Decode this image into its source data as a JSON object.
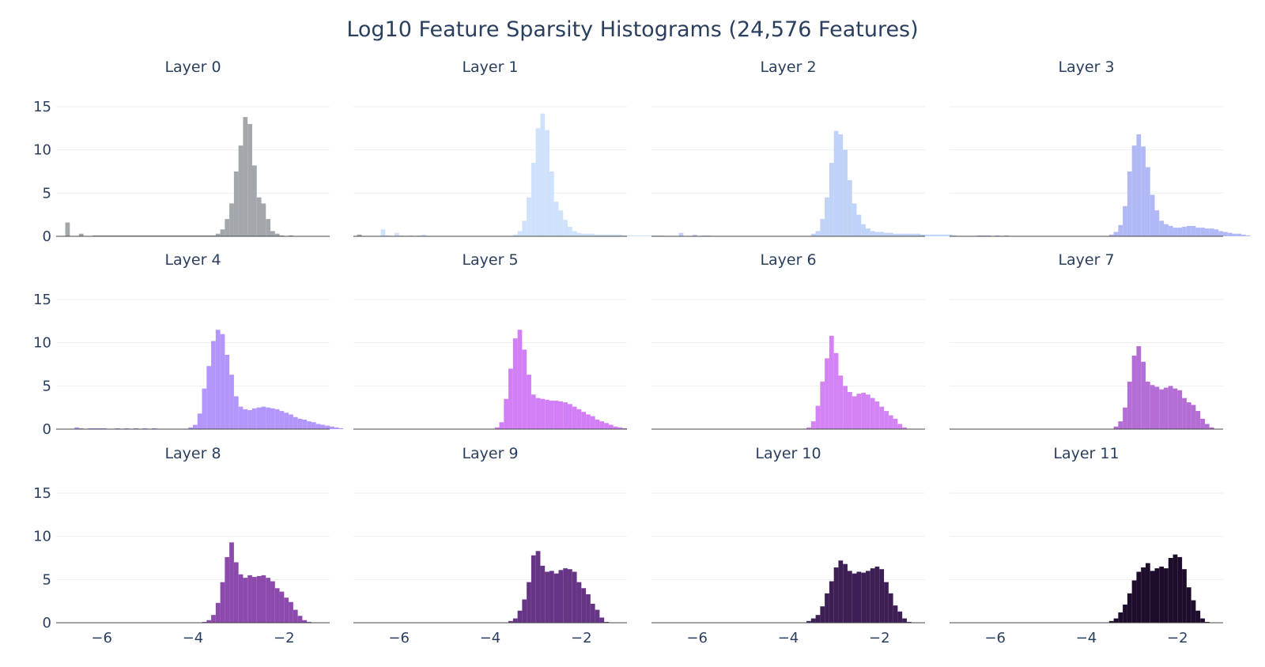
{
  "figure": {
    "title": "Log10 Feature Sparsity Histograms (24,576 Features)"
  },
  "chart_data": {
    "type": "bar",
    "kind": "histogram-grid",
    "title": "Log10 Feature Sparsity Histograms (24,576 Features)",
    "grid": true,
    "layout": {
      "rows": 3,
      "cols": 4
    },
    "xlim": [
      -7,
      -1
    ],
    "ylim": [
      0,
      15
    ],
    "x_ticks": [
      -6,
      -4,
      -2
    ],
    "y_ticks": [
      0,
      5,
      10,
      15
    ],
    "bin_start": -6.8,
    "bin_width": 0.1,
    "panels": [
      {
        "title": "Layer 0",
        "color": "#a2a7ab",
        "values": [
          1.6,
          0,
          0,
          0.3,
          0,
          0,
          0.1,
          0.1,
          0.1,
          0.1,
          0.1,
          0.1,
          0.1,
          0.1,
          0.1,
          0.1,
          0.1,
          0.1,
          0.1,
          0.1,
          0.1,
          0.1,
          0.1,
          0.1,
          0.1,
          0.1,
          0.1,
          0.1,
          0.1,
          0.1,
          0.1,
          0.1,
          0.1,
          0.3,
          0.8,
          2.0,
          3.8,
          7.5,
          10.5,
          13.8,
          13.0,
          8.2,
          4.5,
          3.8,
          2.0,
          0.6,
          0.3,
          0.1,
          0,
          0.1,
          0,
          0,
          0,
          0,
          0,
          0,
          0,
          0,
          0,
          0,
          0,
          0,
          0,
          0,
          0.2,
          0
        ]
      },
      {
        "title": "Layer 1",
        "color": "#cfe2fb",
        "values": [
          0,
          0,
          0,
          0,
          0.8,
          0.1,
          0,
          0.4,
          0.1,
          0,
          0.1,
          0,
          0.1,
          0.2,
          0,
          0,
          0,
          0,
          0,
          0,
          0,
          0,
          0,
          0,
          0,
          0,
          0,
          0,
          0,
          0,
          0,
          0,
          0,
          0.2,
          0.6,
          1.8,
          4.5,
          8.5,
          12.5,
          14.2,
          12.3,
          7.5,
          4.0,
          3.0,
          1.9,
          1.1,
          0.6,
          0.4,
          0.3,
          0.3,
          0.3,
          0.2,
          0.2,
          0.2,
          0.2,
          0.2,
          0.2,
          0.1,
          0.1,
          0.1,
          0.1,
          0.1,
          0.1,
          0.1,
          0.1,
          0.1
        ]
      },
      {
        "title": "Layer 2",
        "color": "#bfd3f8",
        "values": [
          0,
          0,
          0,
          0,
          0.4,
          0,
          0,
          0.2,
          0,
          0.1,
          0.1,
          0,
          0,
          0,
          0,
          0,
          0,
          0,
          0,
          0,
          0,
          0,
          0,
          0,
          0,
          0,
          0,
          0,
          0,
          0,
          0,
          0,
          0,
          0.3,
          0.6,
          2.0,
          4.5,
          8.5,
          12.2,
          11.8,
          10.0,
          6.5,
          3.8,
          2.5,
          1.4,
          0.9,
          0.6,
          0.5,
          0.5,
          0.4,
          0.4,
          0.3,
          0.3,
          0.3,
          0.3,
          0.3,
          0.3,
          0.2,
          0.2,
          0.2,
          0.2,
          0.2,
          0.2,
          0.2,
          0.1,
          0
        ]
      },
      {
        "title": "Layer 3",
        "color": "#b0b9f6",
        "values": [
          0,
          0,
          0,
          0,
          0.1,
          0.1,
          0.1,
          0,
          0.1,
          0,
          0.1,
          0,
          0,
          0,
          0,
          0,
          0,
          0,
          0,
          0,
          0,
          0,
          0,
          0,
          0,
          0,
          0,
          0,
          0,
          0,
          0,
          0,
          0,
          0.2,
          0.5,
          1.3,
          3.5,
          7.5,
          10.5,
          11.8,
          10.4,
          8.0,
          4.8,
          3.0,
          1.8,
          1.4,
          1.2,
          1.0,
          1.0,
          1.1,
          1.2,
          1.2,
          1.0,
          1.0,
          0.9,
          0.9,
          0.8,
          0.6,
          0.5,
          0.4,
          0.3,
          0.3,
          0.2,
          0.1,
          0,
          0
        ]
      },
      {
        "title": "Layer 4",
        "color": "#b396fb",
        "values": [
          0,
          0,
          0.2,
          0.1,
          0,
          0.1,
          0.1,
          0.1,
          0.1,
          0,
          0,
          0.1,
          0,
          0.1,
          0,
          0.1,
          0,
          0.1,
          0,
          0.1,
          0,
          0,
          0,
          0,
          0,
          0,
          0,
          0.2,
          0.5,
          1.8,
          4.7,
          7.3,
          10.2,
          11.5,
          11.0,
          8.6,
          6.3,
          3.8,
          2.6,
          2.3,
          2.2,
          2.4,
          2.5,
          2.6,
          2.5,
          2.4,
          2.3,
          2.1,
          1.9,
          1.7,
          1.4,
          1.2,
          1.1,
          0.9,
          0.8,
          0.6,
          0.5,
          0.4,
          0.3,
          0.2,
          0.1,
          0,
          0,
          0,
          0,
          0
        ]
      },
      {
        "title": "Layer 5",
        "color": "#d27ff7",
        "values": [
          0,
          0,
          0,
          0,
          0,
          0,
          0,
          0,
          0,
          0,
          0,
          0,
          0,
          0,
          0,
          0,
          0,
          0,
          0,
          0,
          0,
          0,
          0,
          0,
          0,
          0,
          0,
          0,
          0,
          0.2,
          0.8,
          3.5,
          7.0,
          10.5,
          11.5,
          9.2,
          6.3,
          4.0,
          3.6,
          3.5,
          3.4,
          3.3,
          3.3,
          3.2,
          3.1,
          2.9,
          2.6,
          2.3,
          2.0,
          1.7,
          1.5,
          1.1,
          0.9,
          0.7,
          0.5,
          0.3,
          0.2,
          0.1,
          0,
          0,
          0,
          0,
          0,
          0,
          0,
          0
        ]
      },
      {
        "title": "Layer 6",
        "color": "#d483f4",
        "values": [
          0,
          0,
          0,
          0,
          0,
          0,
          0,
          0,
          0,
          0,
          0,
          0,
          0,
          0,
          0,
          0,
          0,
          0,
          0,
          0,
          0,
          0,
          0,
          0,
          0,
          0,
          0,
          0,
          0,
          0,
          0,
          0,
          0.2,
          0.9,
          2.7,
          5.5,
          8.2,
          10.8,
          8.8,
          6.2,
          5.0,
          4.3,
          3.8,
          4.1,
          4.2,
          4.0,
          3.6,
          3.2,
          2.6,
          2.1,
          1.6,
          1.2,
          0.6,
          0.2,
          0,
          0,
          0,
          0,
          0,
          0,
          0,
          0,
          0,
          0,
          0,
          0
        ]
      },
      {
        "title": "Layer 7",
        "color": "#b36dd5",
        "values": [
          0,
          0,
          0,
          0,
          0,
          0,
          0,
          0,
          0,
          0,
          0,
          0,
          0,
          0,
          0,
          0,
          0,
          0,
          0,
          0,
          0,
          0,
          0,
          0,
          0,
          0,
          0,
          0,
          0,
          0,
          0,
          0,
          0,
          0,
          0.3,
          0.9,
          2.5,
          5.5,
          8.5,
          9.6,
          7.8,
          5.5,
          5.1,
          4.9,
          4.6,
          4.8,
          5.0,
          4.7,
          4.5,
          3.6,
          3.1,
          2.8,
          2.1,
          1.2,
          0.6,
          0.2,
          0,
          0,
          0,
          0,
          0,
          0,
          0,
          0,
          0,
          0
        ]
      },
      {
        "title": "Layer 8",
        "color": "#8c4aad",
        "values": [
          0,
          0,
          0,
          0,
          0,
          0,
          0,
          0,
          0,
          0,
          0,
          0,
          0,
          0,
          0,
          0,
          0,
          0,
          0,
          0,
          0,
          0,
          0,
          0,
          0,
          0,
          0,
          0,
          0,
          0,
          0.1,
          0.3,
          0.9,
          2.3,
          4.7,
          7.6,
          9.3,
          7.0,
          5.6,
          5.2,
          5.5,
          5.3,
          5.4,
          5.5,
          5.2,
          4.8,
          4.0,
          3.6,
          2.9,
          2.4,
          1.5,
          0.8,
          0.3,
          0.1,
          0,
          0,
          0,
          0,
          0,
          0,
          0,
          0,
          0,
          0,
          0,
          0
        ]
      },
      {
        "title": "Layer 9",
        "color": "#673585",
        "values": [
          0,
          0,
          0,
          0,
          0,
          0,
          0,
          0,
          0,
          0,
          0,
          0,
          0,
          0,
          0,
          0,
          0,
          0,
          0,
          0,
          0,
          0,
          0,
          0,
          0,
          0,
          0,
          0,
          0,
          0,
          0,
          0,
          0.2,
          0.5,
          1.4,
          2.7,
          4.7,
          7.8,
          8.3,
          6.6,
          5.9,
          6.0,
          5.7,
          6.1,
          6.3,
          6.2,
          5.9,
          4.7,
          4.0,
          3.3,
          2.2,
          1.5,
          0.6,
          0.1,
          0,
          0,
          0,
          0,
          0,
          0,
          0,
          0,
          0,
          0,
          0,
          0
        ]
      },
      {
        "title": "Layer 10",
        "color": "#3d1f55",
        "values": [
          0,
          0,
          0,
          0,
          0,
          0,
          0,
          0,
          0,
          0,
          0,
          0,
          0,
          0,
          0,
          0,
          0,
          0,
          0,
          0,
          0,
          0,
          0,
          0,
          0,
          0,
          0,
          0,
          0,
          0,
          0,
          0,
          0.2,
          0.5,
          0.9,
          1.9,
          3.4,
          4.8,
          6.4,
          7.2,
          6.8,
          6.0,
          5.7,
          5.9,
          5.8,
          6.0,
          6.3,
          6.5,
          6.2,
          4.7,
          3.4,
          2.0,
          1.3,
          0.5,
          0.1,
          0,
          0,
          0,
          0,
          0,
          0,
          0,
          0,
          0,
          0,
          0
        ]
      },
      {
        "title": "Layer 11",
        "color": "#1d0c2c",
        "values": [
          0,
          0,
          0,
          0,
          0,
          0,
          0,
          0,
          0,
          0,
          0,
          0,
          0,
          0,
          0,
          0,
          0,
          0,
          0,
          0,
          0,
          0,
          0,
          0,
          0,
          0,
          0,
          0,
          0,
          0,
          0,
          0,
          0,
          0.2,
          0.5,
          1.2,
          2.1,
          3.4,
          4.9,
          5.9,
          6.4,
          6.9,
          6.0,
          6.3,
          6.5,
          6.3,
          7.5,
          7.9,
          7.6,
          6.2,
          4.1,
          2.6,
          1.4,
          0.5,
          0.1,
          0,
          0,
          0,
          0,
          0,
          0,
          0,
          0,
          0,
          0,
          0
        ]
      }
    ]
  }
}
